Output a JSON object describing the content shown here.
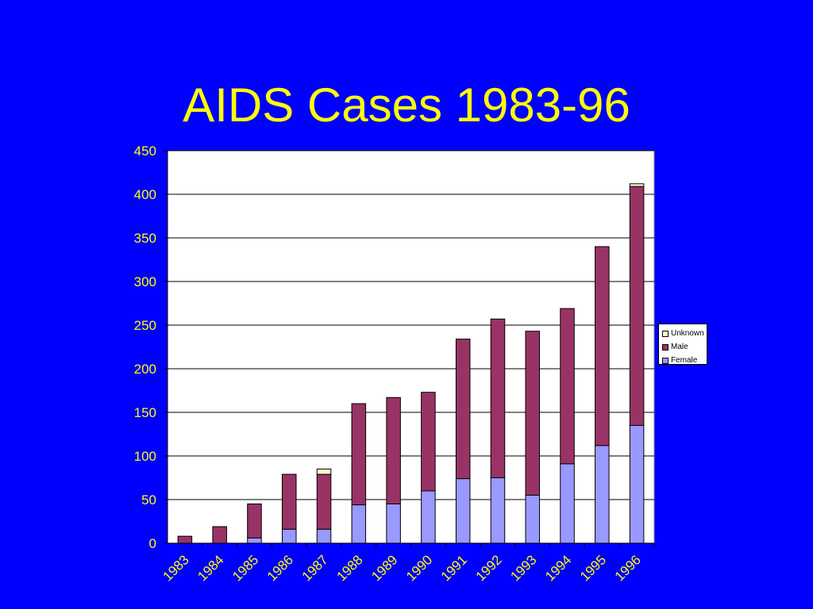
{
  "slide": {
    "title": "AIDS Cases 1983-96"
  },
  "colors": {
    "background": "#0000FF",
    "title": "#FFFF00",
    "axis_labels": "#FFFF00",
    "female": "#9999FF",
    "male": "#993366",
    "unknown": "#FFFFCC"
  },
  "legend": {
    "items": [
      {
        "label": "Unknown",
        "color": "#FFFFCC"
      },
      {
        "label": "Male",
        "color": "#993366"
      },
      {
        "label": "Female",
        "color": "#9999FF"
      }
    ]
  },
  "chart_data": {
    "type": "bar",
    "stacked": true,
    "title": "AIDS Cases 1983-96",
    "xlabel": "",
    "ylabel": "",
    "categories": [
      "1983",
      "1984",
      "1985",
      "1986",
      "1987",
      "1988",
      "1989",
      "1990",
      "1991",
      "1992",
      "1993",
      "1994",
      "1995",
      "1996"
    ],
    "series": [
      {
        "name": "Female",
        "color": "#9999FF",
        "values": [
          0,
          0,
          6,
          16,
          16,
          44,
          45,
          60,
          74,
          75,
          55,
          91,
          112,
          135
        ]
      },
      {
        "name": "Male",
        "color": "#993366",
        "values": [
          8,
          19,
          39,
          63,
          63,
          116,
          122,
          113,
          160,
          182,
          188,
          178,
          228,
          274
        ]
      },
      {
        "name": "Unknown",
        "color": "#FFFFCC",
        "values": [
          0,
          0,
          0,
          0,
          6,
          0,
          0,
          0,
          0,
          0,
          0,
          0,
          0,
          3
        ]
      }
    ],
    "ylim": [
      0,
      450
    ],
    "yticks": [
      0,
      50,
      100,
      150,
      200,
      250,
      300,
      350,
      400,
      450
    ],
    "grid": true,
    "legend_position": "right"
  }
}
